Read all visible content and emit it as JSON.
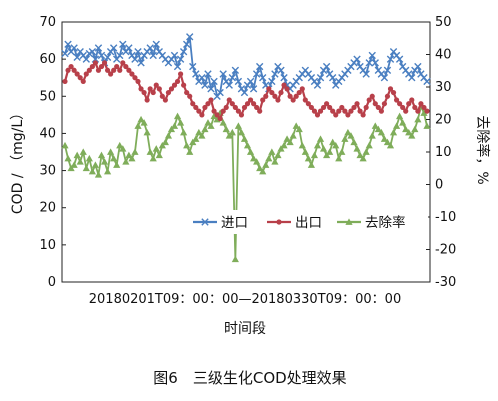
{
  "chart_data": {
    "type": "line",
    "caption": "图6　三级生化COD处理效果",
    "x_range_label": "20180201T09：00：00—20180330T09：00：00",
    "xlabel": "时间段",
    "ylabel_left": "COD / （mg/L）",
    "ylabel_right": "去除率，%",
    "ylim_left": [
      0,
      70
    ],
    "ylim_right": [
      -30,
      50
    ],
    "yticks_left": [
      "0",
      "10",
      "20",
      "30",
      "40",
      "50",
      "60",
      "70"
    ],
    "yticks_right": [
      "-30",
      "-20",
      "-10",
      "0",
      "10",
      "20",
      "30",
      "40",
      "50"
    ],
    "colors": {
      "inlet": "#4a7fc1",
      "outlet": "#b8404a",
      "removal": "#7fad5a"
    },
    "legend_position": "lower-right",
    "series": [
      {
        "name": "进口",
        "axis": "left",
        "marker": "x",
        "values": [
          61.5,
          64,
          62,
          63,
          60.5,
          62,
          61,
          60,
          61.5,
          62,
          60,
          63,
          61,
          59,
          60.5,
          62,
          63,
          60,
          61,
          64,
          62,
          63,
          61,
          60,
          62,
          59,
          61,
          62,
          63,
          61,
          64,
          62,
          61,
          60,
          59,
          60,
          61,
          58,
          60,
          62,
          64,
          66,
          58,
          56,
          54,
          55,
          53,
          56,
          52,
          54,
          50,
          51,
          56,
          54,
          53,
          55,
          57,
          54,
          52,
          51,
          53,
          54,
          52,
          56,
          58,
          55,
          53,
          52,
          54,
          56,
          58,
          57,
          55,
          53,
          52,
          53,
          54,
          55,
          56,
          57,
          56,
          55,
          54,
          53,
          55,
          57,
          58,
          56,
          55,
          53,
          54,
          55,
          56,
          57,
          58,
          59,
          60,
          58,
          57,
          56,
          59,
          61,
          59,
          57,
          56,
          55,
          57,
          60,
          62,
          61,
          60,
          58,
          57,
          56,
          55,
          57,
          58,
          56,
          55,
          54
        ]
      },
      {
        "name": "出口",
        "axis": "left",
        "marker": "circle",
        "values": [
          54,
          57,
          58,
          57,
          56,
          55,
          54,
          56,
          57,
          58,
          59,
          57,
          58,
          59,
          57,
          56,
          57,
          58,
          57,
          59,
          58,
          57,
          56,
          55,
          54,
          52,
          51,
          49,
          52,
          51,
          53,
          52,
          50,
          49,
          51,
          52,
          53,
          54,
          56,
          53,
          51,
          50,
          48,
          47,
          46,
          45,
          47,
          48,
          49,
          46,
          45,
          44,
          46,
          47,
          49,
          48,
          47,
          46,
          45,
          47,
          48,
          49,
          48,
          47,
          46,
          49,
          50,
          52,
          51,
          50,
          49,
          51,
          53,
          52,
          50,
          49,
          50,
          51,
          52,
          49,
          48,
          47,
          46,
          45,
          46,
          47,
          48,
          47,
          46,
          45,
          46,
          47,
          46,
          45,
          46,
          47,
          48,
          46,
          45,
          47,
          49,
          50,
          48,
          47,
          46,
          48,
          50,
          52,
          51,
          49,
          48,
          47,
          46,
          48,
          49,
          47,
          46,
          48,
          47,
          46
        ]
      },
      {
        "name": "去除率",
        "axis": "right",
        "marker": "triangle",
        "values": [
          12,
          8,
          5,
          6,
          9,
          7,
          10,
          5,
          8,
          4,
          6,
          3,
          9,
          7,
          4,
          10,
          8,
          6,
          12,
          11,
          7,
          9,
          8,
          10,
          18,
          20,
          19,
          16,
          10,
          8,
          11,
          9,
          12,
          13,
          15,
          17,
          18,
          21,
          19,
          16,
          12,
          10,
          13,
          14,
          16,
          15,
          17,
          19,
          18,
          21,
          20,
          22,
          19,
          17,
          15,
          16,
          -23,
          18,
          16,
          14,
          12,
          10,
          8,
          7,
          5,
          4,
          6,
          8,
          10,
          7,
          9,
          11,
          12,
          14,
          13,
          15,
          18,
          17,
          12,
          10,
          8,
          6,
          9,
          12,
          14,
          11,
          9,
          10,
          13,
          12,
          8,
          10,
          14,
          16,
          15,
          13,
          11,
          9,
          8,
          10,
          12,
          15,
          18,
          17,
          16,
          14,
          13,
          12,
          16,
          18,
          21,
          19,
          17,
          16,
          15,
          17,
          20,
          24,
          22,
          18
        ]
      }
    ]
  }
}
